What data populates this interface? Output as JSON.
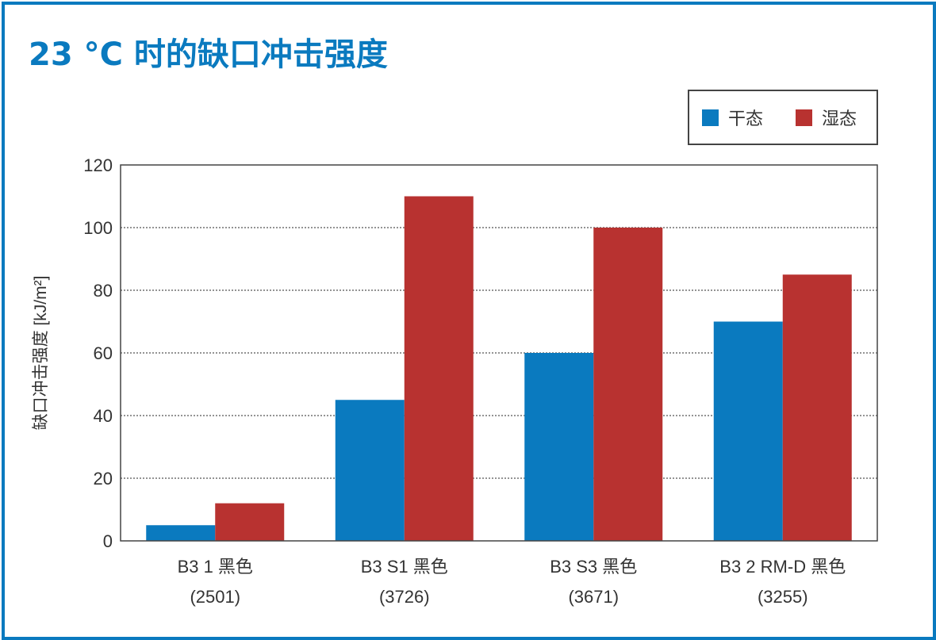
{
  "title": "23 °C 时的缺口冲击强度",
  "colors": {
    "frame": "#0a7abf",
    "title": "#0a7abf",
    "dry": "#0a7abf",
    "wet": "#b83230"
  },
  "chart_data": {
    "type": "bar",
    "title": "23 °C 时的缺口冲击强度",
    "ylabel": "缺口冲击强度 [kJ/m²]",
    "xlabel": "",
    "ylim": [
      0,
      120
    ],
    "yticks": [
      0,
      20,
      40,
      60,
      80,
      100,
      120
    ],
    "grid": true,
    "legend_position": "top-right",
    "categories": [
      {
        "line1": "B3 1 黑色",
        "line2": "(2501)"
      },
      {
        "line1": "B3 S1 黑色",
        "line2": "(3726)"
      },
      {
        "line1": "B3 S3 黑色",
        "line2": "(3671)"
      },
      {
        "line1": "B3 2 RM-D 黑色",
        "line2": "(3255)"
      }
    ],
    "series": [
      {
        "name": "干态",
        "color": "#0a7abf",
        "values": [
          5,
          45,
          60,
          70
        ]
      },
      {
        "name": "湿态",
        "color": "#b83230",
        "values": [
          12,
          110,
          100,
          85
        ]
      }
    ]
  }
}
